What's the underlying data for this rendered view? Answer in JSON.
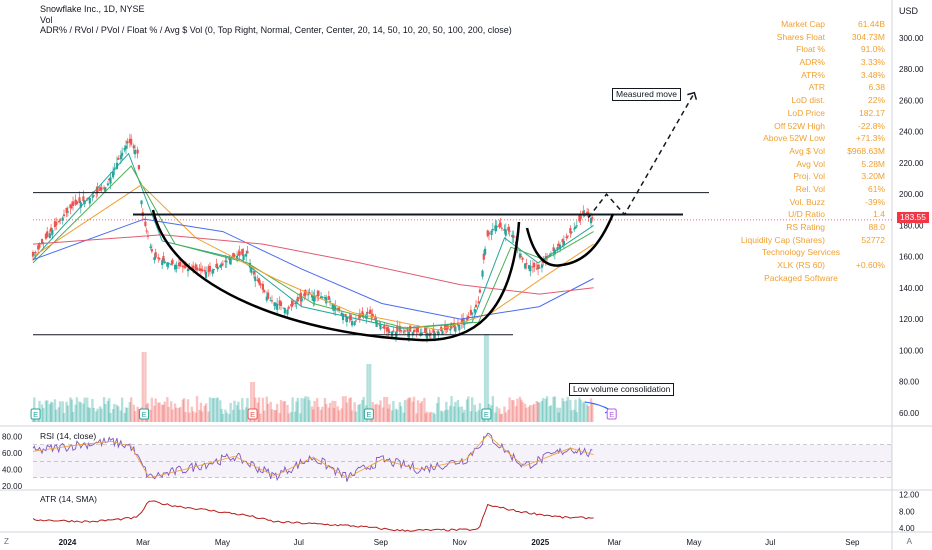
{
  "header": {
    "title": "Snowflake Inc., 1D, NYSE",
    "volume_label": "Vol",
    "indicator_line": "ADR% / RVol / PVol / Float % / Avg $ Vol (0, Top Right, Normal, Center, Center, 20, 14, 50, 10, 20, 50, 100, 200, close)"
  },
  "currency": "USD",
  "stats": [
    {
      "label": "Market Cap",
      "value": "61.44B"
    },
    {
      "label": "Shares Float",
      "value": "304.73M"
    },
    {
      "label": "Float %",
      "value": "91.0%"
    },
    {
      "label": "ADR%",
      "value": "3.33%"
    },
    {
      "label": "ATR%",
      "value": "3.48%"
    },
    {
      "label": "ATR",
      "value": "6.38"
    },
    {
      "label": "LoD dist.",
      "value": "22%"
    },
    {
      "label": "LoD Price",
      "value": "182.17"
    },
    {
      "label": "Off 52W High",
      "value": "-22.8%"
    },
    {
      "label": "Above 52W Low",
      "value": "+71.3%"
    },
    {
      "label": "Avg $ Vol",
      "value": "$968.63M"
    },
    {
      "label": "Avg Vol",
      "value": "5.28M"
    },
    {
      "label": "Proj. Vol",
      "value": "3.20M"
    },
    {
      "label": "Rel. Vol",
      "value": "61%"
    },
    {
      "label": "Vol. Buzz",
      "value": "-39%"
    },
    {
      "label": "U/D Ratio",
      "value": "1.4"
    },
    {
      "label": "RS Rating",
      "value": "88.0"
    },
    {
      "label": "Liquidity Cap (Shares)",
      "value": "52772"
    },
    {
      "label": "Technology Services",
      "value": ""
    },
    {
      "label": "XLK (RS 60)",
      "value": "+0.60%"
    },
    {
      "label": "Packaged Software",
      "value": ""
    }
  ],
  "annotations": {
    "measured_move": "Measured move",
    "low_volume": "Low volume consolidation"
  },
  "last_price": "183.55",
  "earnings_marker": "E",
  "rsi_label": "RSI (14, close)",
  "atr_label": "ATR (14, SMA)",
  "corner_left": "Z",
  "corner_right": "A",
  "colors": {
    "up": "#26a69a",
    "down": "#ef5350",
    "ma10": "#26a69a",
    "ma20": "#4caf50",
    "ma50": "#f0a030",
    "ma100": "#4a6cf0",
    "ma200": "#e05b70",
    "rsi": "#7e57c2",
    "atr": "#b71c1c",
    "stats_text": "#f0a030",
    "price_tag": "#f23645"
  },
  "chart_data": [
    {
      "type": "candlestick",
      "title": "Snowflake Inc., 1D, NYSE",
      "ylim": [
        40,
        320
      ],
      "y_ticks": [
        60,
        80,
        100,
        120,
        140,
        160,
        180,
        200,
        220,
        240,
        260,
        280,
        300
      ],
      "x_ticks": [
        "2024",
        "Mar",
        "May",
        "Jul",
        "Sep",
        "Nov",
        "2025",
        "Mar",
        "May",
        "Jul",
        "Sep"
      ],
      "x_tick_dates": [
        "2024-01-01",
        "2024-03-01",
        "2024-05-01",
        "2024-07-01",
        "2024-09-01",
        "2024-11-01",
        "2025-01-01",
        "2025-03-01",
        "2025-05-01",
        "2025-07-01",
        "2025-09-01"
      ],
      "x_range": [
        "2023-12-06",
        "2025-10-01"
      ],
      "close_path": [
        [
          "2023-12-06",
          160
        ],
        [
          "2023-12-20",
          176
        ],
        [
          "2024-01-05",
          192
        ],
        [
          "2024-01-20",
          198
        ],
        [
          "2024-02-01",
          205
        ],
        [
          "2024-02-10",
          222
        ],
        [
          "2024-02-18",
          234
        ],
        [
          "2024-02-25",
          226
        ],
        [
          "2024-02-29",
          186
        ],
        [
          "2024-03-08",
          160
        ],
        [
          "2024-03-20",
          156
        ],
        [
          "2024-04-05",
          152
        ],
        [
          "2024-04-20",
          150
        ],
        [
          "2024-05-10",
          160
        ],
        [
          "2024-05-20",
          162
        ],
        [
          "2024-05-24",
          150
        ],
        [
          "2024-06-05",
          133
        ],
        [
          "2024-06-20",
          126
        ],
        [
          "2024-07-05",
          136
        ],
        [
          "2024-07-20",
          134
        ],
        [
          "2024-08-01",
          124
        ],
        [
          "2024-08-10",
          118
        ],
        [
          "2024-08-22",
          124
        ],
        [
          "2024-09-05",
          112
        ],
        [
          "2024-09-20",
          112
        ],
        [
          "2024-10-10",
          111
        ],
        [
          "2024-10-25",
          114
        ],
        [
          "2024-11-05",
          118
        ],
        [
          "2024-11-15",
          130
        ],
        [
          "2024-11-21",
          172
        ],
        [
          "2024-11-28",
          180
        ],
        [
          "2024-12-10",
          176
        ],
        [
          "2024-12-20",
          156
        ],
        [
          "2024-12-31",
          152
        ],
        [
          "2025-01-10",
          162
        ],
        [
          "2025-01-20",
          170
        ],
        [
          "2025-01-30",
          180
        ],
        [
          "2025-02-05",
          188
        ],
        [
          "2025-02-12",
          183.55
        ]
      ],
      "moving_averages": [
        {
          "name": "MA10",
          "path": [
            [
              "2023-12-06",
              158
            ],
            [
              "2024-02-18",
              226
            ],
            [
              "2024-03-15",
              170
            ],
            [
              "2024-05-15",
              158
            ],
            [
              "2024-07-01",
              128
            ],
            [
              "2024-09-15",
              114
            ],
            [
              "2024-11-10",
              118
            ],
            [
              "2024-12-05",
              172
            ],
            [
              "2024-12-31",
              156
            ],
            [
              "2025-02-12",
              180
            ]
          ]
        },
        {
          "name": "MA20",
          "path": [
            [
              "2023-12-06",
              156
            ],
            [
              "2024-02-20",
              218
            ],
            [
              "2024-03-25",
              168
            ],
            [
              "2024-05-20",
              156
            ],
            [
              "2024-07-10",
              130
            ],
            [
              "2024-09-20",
              114
            ],
            [
              "2024-11-15",
              118
            ],
            [
              "2024-12-10",
              166
            ],
            [
              "2025-01-05",
              158
            ],
            [
              "2025-02-12",
              176
            ]
          ]
        },
        {
          "name": "MA50",
          "path": [
            [
              "2023-12-06",
              160
            ],
            [
              "2024-02-28",
              206
            ],
            [
              "2024-04-10",
              172
            ],
            [
              "2024-06-10",
              146
            ],
            [
              "2024-08-10",
              124
            ],
            [
              "2024-10-15",
              113
            ],
            [
              "2024-11-25",
              124
            ],
            [
              "2025-01-10",
              150
            ],
            [
              "2025-02-12",
              168
            ]
          ]
        },
        {
          "name": "MA100",
          "path": [
            [
              "2023-12-06",
              158
            ],
            [
              "2024-03-01",
              184
            ],
            [
              "2024-05-01",
              176
            ],
            [
              "2024-07-01",
              152
            ],
            [
              "2024-09-01",
              130
            ],
            [
              "2024-11-01",
              120
            ],
            [
              "2025-01-01",
              128
            ],
            [
              "2025-02-12",
              146
            ]
          ]
        },
        {
          "name": "MA200",
          "path": [
            [
              "2023-12-06",
              168
            ],
            [
              "2024-03-15",
              174
            ],
            [
              "2024-06-01",
              168
            ],
            [
              "2024-08-15",
              156
            ],
            [
              "2024-11-01",
              142
            ],
            [
              "2025-01-01",
              136
            ],
            [
              "2025-02-12",
              140
            ]
          ]
        }
      ],
      "horizontal_levels": [
        201,
        187,
        110
      ],
      "projection_path": [
        [
          "2025-02-08",
          185
        ],
        [
          "2025-02-22",
          200
        ],
        [
          "2025-03-08",
          187
        ],
        [
          "2025-05-01",
          265
        ]
      ],
      "earnings_dates": [
        "2023-12-08",
        "2024-03-01",
        "2024-05-24",
        "2024-08-22",
        "2024-11-21",
        "2025-02-26"
      ]
    },
    {
      "type": "line",
      "title": "RSI (14, close)",
      "ylim": [
        20,
        85
      ],
      "y_ticks": [
        20,
        40,
        60,
        80
      ],
      "bands": [
        70,
        50,
        30
      ],
      "path": [
        [
          "2023-12-06",
          62
        ],
        [
          "2024-01-10",
          70
        ],
        [
          "2024-02-05",
          74
        ],
        [
          "2024-02-20",
          68
        ],
        [
          "2024-03-05",
          30
        ],
        [
          "2024-04-01",
          40
        ],
        [
          "2024-05-10",
          56
        ],
        [
          "2024-06-10",
          32
        ],
        [
          "2024-07-10",
          55
        ],
        [
          "2024-08-05",
          30
        ],
        [
          "2024-09-01",
          52
        ],
        [
          "2024-10-01",
          40
        ],
        [
          "2024-11-05",
          52
        ],
        [
          "2024-11-22",
          82
        ],
        [
          "2024-12-20",
          44
        ],
        [
          "2025-01-25",
          66
        ],
        [
          "2025-02-12",
          58
        ]
      ]
    },
    {
      "type": "line",
      "title": "ATR (14, SMA)",
      "ylim": [
        2,
        13
      ],
      "y_ticks": [
        4,
        8,
        12
      ],
      "path": [
        [
          "2023-12-06",
          6
        ],
        [
          "2024-01-20",
          5.5
        ],
        [
          "2024-02-25",
          6.5
        ],
        [
          "2024-03-05",
          10.5
        ],
        [
          "2024-03-20",
          9.5
        ],
        [
          "2024-05-20",
          7
        ],
        [
          "2024-06-10",
          5.5
        ],
        [
          "2024-08-10",
          4.5
        ],
        [
          "2024-09-15",
          3.4
        ],
        [
          "2024-11-15",
          3.6
        ],
        [
          "2024-11-22",
          9.5
        ],
        [
          "2024-12-15",
          8
        ],
        [
          "2025-01-20",
          6.5
        ],
        [
          "2025-02-12",
          6.4
        ]
      ]
    }
  ]
}
